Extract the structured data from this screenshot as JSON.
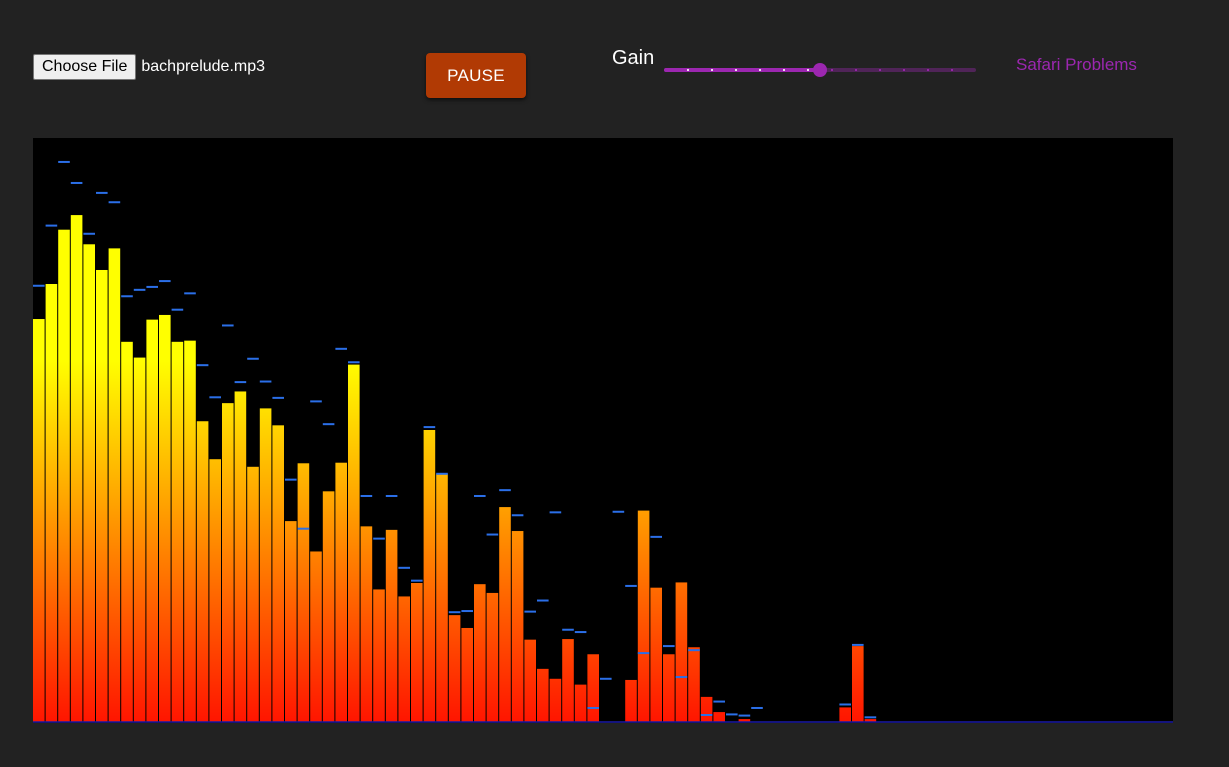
{
  "controls": {
    "choose_file_label": "Choose File",
    "file_name": "bachprelude.mp3",
    "pause_label": "PAUSE",
    "gain_label": "Gain",
    "safari_link_label": "Safari Problems"
  },
  "gain_slider": {
    "value_fraction": 0.5,
    "ticks": 12,
    "accent_color": "#9c27b0"
  },
  "colors": {
    "background": "#222222",
    "visualizer_background": "#000000",
    "pause_button": "#b13a04",
    "bar_bottom": "#ff1500",
    "bar_top": "#ffff00",
    "peak_marker": "#2b6fe8",
    "baseline": "#1a1aa8"
  },
  "spectrum": {
    "bars": [
      0.69,
      0.75,
      0.843,
      0.868,
      0.818,
      0.774,
      0.811,
      0.651,
      0.624,
      0.689,
      0.697,
      0.651,
      0.653,
      0.515,
      0.45,
      0.546,
      0.566,
      0.437,
      0.537,
      0.508,
      0.344,
      0.443,
      0.292,
      0.395,
      0.444,
      0.612,
      0.335,
      0.227,
      0.329,
      0.215,
      0.238,
      0.5,
      0.425,
      0.183,
      0.161,
      0.236,
      0.221,
      0.368,
      0.327,
      0.141,
      0.091,
      0.074,
      0.142,
      0.064,
      0.116,
      0,
      0,
      0.072,
      0.362,
      0.23,
      0.116,
      0.239,
      0.128,
      0.043,
      0.017,
      0,
      0.005,
      0,
      0,
      0,
      0,
      0,
      0,
      0,
      0.025,
      0.13,
      0.005,
      0,
      0,
      0,
      0,
      0,
      0,
      0,
      0,
      0,
      0,
      0,
      0,
      0,
      0,
      0,
      0,
      0,
      0,
      0,
      0,
      0,
      0,
      0,
      0
    ],
    "peaks": [
      0.747,
      0.85,
      0.959,
      0.923,
      0.836,
      0.906,
      0.89,
      0.729,
      0.74,
      0.745,
      0.755,
      0.706,
      0.734,
      0.611,
      0.556,
      0.679,
      0.582,
      0.622,
      0.583,
      0.555,
      0.415,
      0.331,
      0.549,
      0.51,
      0.639,
      0.616,
      0.387,
      0.314,
      0.387,
      0.264,
      0.242,
      0.505,
      0.425,
      0.188,
      0.19,
      0.387,
      0.321,
      0.397,
      0.354,
      0.189,
      0.208,
      0.359,
      0.158,
      0.154,
      0.024,
      0.074,
      0.36,
      0.233,
      0.118,
      0.317,
      0.13,
      0.077,
      0.123,
      0.012,
      0.035,
      0.013,
      0.011,
      0.024,
      0,
      0,
      0,
      0,
      0,
      0,
      0.03,
      0.132,
      0.008,
      0,
      0,
      0,
      0,
      0,
      0,
      0,
      0,
      0,
      0,
      0,
      0,
      0,
      0,
      0,
      0,
      0,
      0,
      0,
      0,
      0,
      0,
      0,
      0
    ]
  }
}
